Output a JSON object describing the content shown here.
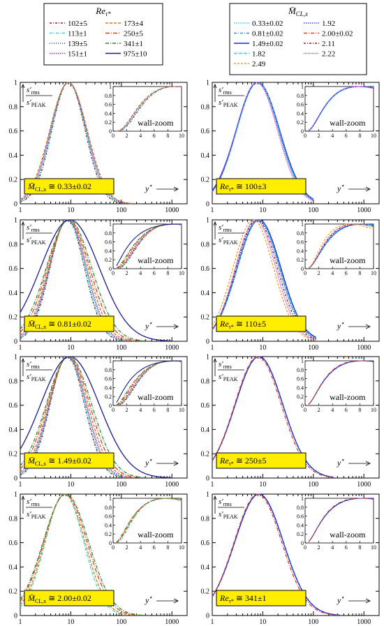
{
  "legend_left": {
    "title": "Re",
    "title_sub": "τ*",
    "entries": [
      {
        "label": "102±5",
        "color": "#8b1a1a",
        "dash": "3,2,1,2"
      },
      {
        "label": "173±4",
        "color": "#c87d1a",
        "dash": "4,2"
      },
      {
        "label": "113±1",
        "color": "#2fd4d4",
        "dash": "4,2,1,2"
      },
      {
        "label": "250±5",
        "color": "#e33b1f",
        "dash": "6,2,1,2"
      },
      {
        "label": "139±5",
        "color": "#1f4fa0",
        "dash": "1,2"
      },
      {
        "label": "341±1",
        "color": "#2a8a2a",
        "dash": "5,2,1,2"
      },
      {
        "label": "151±1",
        "color": "#a02fc8",
        "dash": "1.5,1.5"
      },
      {
        "label": "975±10",
        "color": "#1a1a8a",
        "dash": ""
      }
    ]
  },
  "legend_right": {
    "title": "M̄",
    "title_sub": "CL,x",
    "entries": [
      {
        "label": "0.33±0.02",
        "color": "#2fd4d4",
        "dash": "1.5,1.5"
      },
      {
        "label": "1.92",
        "color": "#3344dd",
        "dash": "1.5,1.5"
      },
      {
        "label": "0.81±0.02",
        "color": "#3a8fd0",
        "dash": "4,2,1,2"
      },
      {
        "label": "2.00±0.02",
        "color": "#e33b1f",
        "dash": "5,2,1,2"
      },
      {
        "label": "1.49±0.02",
        "color": "#1a2ad8",
        "dash": ""
      },
      {
        "label": "2.11",
        "color": "#8b1a1a",
        "dash": "3,2,1,2"
      },
      {
        "label": "1.82",
        "color": "#2fd4d4",
        "dash": "5,2"
      },
      {
        "label": "2.22",
        "color": "#c02fd0",
        "dash": "1,1"
      },
      {
        "label": "2.49",
        "color": "#f0a020",
        "dash": "3,2"
      }
    ]
  },
  "axis_labels": {
    "ylabel_num": "s′",
    "ylabel_num_sub": "rms",
    "ylabel_den": "s′",
    "ylabel_den_sub": "PEAK",
    "xlabel": "y",
    "xlabel_sup": "⋆",
    "inset_label": "wall-zoom"
  },
  "chart_data": [
    {
      "type": "line",
      "panel": "left-1",
      "badge_var": "M̄",
      "badge_sub": "CL,x",
      "badge_value": "≅ 0.33±0.02",
      "xscale": "log",
      "xlim": [
        1,
        2000
      ],
      "ylim": [
        0,
        1
      ],
      "x_ticks": [
        "1",
        "10",
        "100",
        "1000"
      ],
      "y_ticks": [
        "0",
        "0.2",
        "0.4",
        "0.6",
        "0.8",
        "1"
      ],
      "inset": {
        "xlim": [
          0,
          10
        ],
        "ylim": [
          0,
          1
        ],
        "x_ticks": [
          "0",
          "2",
          "4",
          "6",
          "8",
          "10"
        ],
        "y_ticks": [
          "0",
          "0.2",
          "0.4",
          "0.6",
          "0.8",
          "1"
        ]
      },
      "series": [
        {
          "legend": "left",
          "idx": 0,
          "peak": 9,
          "width": 0.33,
          "xmax": 102
        },
        {
          "legend": "left",
          "idx": 2,
          "peak": 9,
          "width": 0.34,
          "xmax": 113
        },
        {
          "legend": "left",
          "idx": 4,
          "peak": 9,
          "width": 0.35,
          "xmax": 139
        },
        {
          "legend": "left",
          "idx": 6,
          "peak": 9,
          "width": 0.36,
          "xmax": 151
        },
        {
          "legend": "left",
          "idx": 1,
          "peak": 9,
          "width": 0.37,
          "xmax": 173
        }
      ]
    },
    {
      "type": "line",
      "panel": "right-1",
      "badge_var": "Re",
      "badge_sub": "τ*",
      "badge_value": "≅ 100±3",
      "xscale": "log",
      "xlim": [
        1,
        2000
      ],
      "ylim": [
        0,
        1
      ],
      "x_ticks": [
        "1",
        "10",
        "100",
        "1000"
      ],
      "y_ticks": [
        "0",
        "0.2",
        "0.4",
        "0.6",
        "0.8",
        "1"
      ],
      "inset": {
        "xlim": [
          0,
          10
        ],
        "ylim": [
          0,
          1
        ],
        "x_ticks": [
          "0",
          "2",
          "4",
          "6",
          "8",
          "10"
        ],
        "y_ticks": [
          "0",
          "0.2",
          "0.4",
          "0.6",
          "0.8",
          "1"
        ]
      },
      "series": [
        {
          "legend": "right",
          "idx": 0,
          "peak": 8,
          "width": 0.42,
          "xmax": 100
        },
        {
          "legend": "right",
          "idx": 2,
          "peak": 8,
          "width": 0.43,
          "xmax": 100
        },
        {
          "legend": "right",
          "idx": 4,
          "peak": 8,
          "width": 0.43,
          "xmax": 100
        },
        {
          "legend": "right",
          "idx": 6,
          "peak": 8,
          "width": 0.42,
          "xmax": 100
        },
        {
          "legend": "right",
          "idx": 1,
          "peak": 7.8,
          "width": 0.42,
          "xmax": 100
        },
        {
          "legend": "right",
          "idx": 7,
          "peak": 7.6,
          "width": 0.41,
          "xmax": 100
        }
      ]
    },
    {
      "type": "line",
      "panel": "left-2",
      "badge_var": "M̄",
      "badge_sub": "CL,x",
      "badge_value": "≅ 0.81±0.02",
      "xscale": "log",
      "xlim": [
        1,
        2000
      ],
      "ylim": [
        0,
        1
      ],
      "x_ticks": [
        "1",
        "10",
        "100",
        "1000"
      ],
      "y_ticks": [
        "0",
        "0.2",
        "0.4",
        "0.6",
        "0.8",
        "1"
      ],
      "inset": {
        "xlim": [
          0,
          10
        ],
        "ylim": [
          0,
          1
        ],
        "x_ticks": [
          "0",
          "2",
          "4",
          "6",
          "8",
          "10"
        ],
        "y_ticks": [
          "0",
          "0.2",
          "0.4",
          "0.6",
          "0.8",
          "1"
        ]
      },
      "series": [
        {
          "legend": "left",
          "idx": 0,
          "peak": 8.5,
          "width": 0.34,
          "xmax": 102
        },
        {
          "legend": "left",
          "idx": 2,
          "peak": 8.5,
          "width": 0.35,
          "xmax": 113
        },
        {
          "legend": "left",
          "idx": 4,
          "peak": 8.7,
          "width": 0.36,
          "xmax": 139
        },
        {
          "legend": "left",
          "idx": 6,
          "peak": 8.7,
          "width": 0.37,
          "xmax": 151
        },
        {
          "legend": "left",
          "idx": 1,
          "peak": 8.9,
          "width": 0.39,
          "xmax": 173
        },
        {
          "legend": "left",
          "idx": 3,
          "peak": 9,
          "width": 0.42,
          "xmax": 250
        },
        {
          "legend": "left",
          "idx": 5,
          "peak": 9.2,
          "width": 0.45,
          "xmax": 341
        },
        {
          "legend": "left",
          "idx": 7,
          "peak": 9.6,
          "width": 0.58,
          "xmax": 975
        }
      ]
    },
    {
      "type": "line",
      "panel": "right-2",
      "badge_var": "Re",
      "badge_sub": "τ*",
      "badge_value": "≅ 110±5",
      "xscale": "log",
      "xlim": [
        1,
        2000
      ],
      "ylim": [
        0,
        1
      ],
      "x_ticks": [
        "1",
        "10",
        "100",
        "1000"
      ],
      "y_ticks": [
        "0",
        "0.2",
        "0.4",
        "0.6",
        "0.8",
        "1"
      ],
      "inset": {
        "xlim": [
          0,
          10
        ],
        "ylim": [
          0,
          1
        ],
        "x_ticks": [
          "0",
          "2",
          "4",
          "6",
          "8",
          "10"
        ],
        "y_ticks": [
          "0",
          "0.2",
          "0.4",
          "0.6",
          "0.8",
          "1"
        ]
      },
      "series": [
        {
          "legend": "right",
          "idx": 0,
          "peak": 8.5,
          "width": 0.43,
          "xmax": 113
        },
        {
          "legend": "right",
          "idx": 2,
          "peak": 8.5,
          "width": 0.43,
          "xmax": 113
        },
        {
          "legend": "right",
          "idx": 4,
          "peak": 8.4,
          "width": 0.43,
          "xmax": 113
        },
        {
          "legend": "right",
          "idx": 6,
          "peak": 8.2,
          "width": 0.42,
          "xmax": 113
        },
        {
          "legend": "right",
          "idx": 1,
          "peak": 8,
          "width": 0.42,
          "xmax": 113
        },
        {
          "legend": "right",
          "idx": 5,
          "peak": 7.6,
          "width": 0.41,
          "xmax": 113
        },
        {
          "legend": "right",
          "idx": 7,
          "peak": 7.2,
          "width": 0.4,
          "xmax": 113
        },
        {
          "legend": "right",
          "idx": 8,
          "peak": 6.5,
          "width": 0.4,
          "xmax": 113
        }
      ]
    },
    {
      "type": "line",
      "panel": "left-3",
      "badge_var": "M̄",
      "badge_sub": "CL,x",
      "badge_value": "≅ 1.49±0.02",
      "xscale": "log",
      "xlim": [
        1,
        2000
      ],
      "ylim": [
        0,
        1
      ],
      "x_ticks": [
        "1",
        "10",
        "100",
        "1000"
      ],
      "y_ticks": [
        "0",
        "0.2",
        "0.4",
        "0.6",
        "0.8",
        "1"
      ],
      "inset": {
        "xlim": [
          0,
          10
        ],
        "ylim": [
          0,
          1
        ],
        "x_ticks": [
          "0",
          "2",
          "4",
          "6",
          "8",
          "10"
        ],
        "y_ticks": [
          "0",
          "0.2",
          "0.4",
          "0.6",
          "0.8",
          "1"
        ]
      },
      "series": [
        {
          "legend": "left",
          "idx": 0,
          "peak": 8.5,
          "width": 0.34,
          "xmax": 102
        },
        {
          "legend": "left",
          "idx": 2,
          "peak": 8.5,
          "width": 0.35,
          "xmax": 113
        },
        {
          "legend": "left",
          "idx": 4,
          "peak": 8.7,
          "width": 0.36,
          "xmax": 139
        },
        {
          "legend": "left",
          "idx": 6,
          "peak": 8.7,
          "width": 0.37,
          "xmax": 151
        },
        {
          "legend": "left",
          "idx": 1,
          "peak": 8.9,
          "width": 0.39,
          "xmax": 173
        },
        {
          "legend": "left",
          "idx": 3,
          "peak": 9,
          "width": 0.42,
          "xmax": 250
        },
        {
          "legend": "left",
          "idx": 5,
          "peak": 9.2,
          "width": 0.45,
          "xmax": 341
        },
        {
          "legend": "left",
          "idx": 7,
          "peak": 9.6,
          "width": 0.58,
          "xmax": 975
        }
      ]
    },
    {
      "type": "line",
      "panel": "right-3",
      "badge_var": "Re",
      "badge_sub": "τ*",
      "badge_value": "≅ 250±5",
      "xscale": "log",
      "xlim": [
        1,
        2000
      ],
      "ylim": [
        0,
        1
      ],
      "x_ticks": [
        "1",
        "10",
        "100",
        "1000"
      ],
      "y_ticks": [
        "0",
        "0.2",
        "0.4",
        "0.6",
        "0.8",
        "1"
      ],
      "inset": {
        "xlim": [
          0,
          10
        ],
        "ylim": [
          0,
          1
        ],
        "x_ticks": [
          "0",
          "2",
          "4",
          "6",
          "8",
          "10"
        ],
        "y_ticks": [
          "0",
          "0.2",
          "0.4",
          "0.6",
          "0.8",
          "1"
        ]
      },
      "series": [
        {
          "legend": "right",
          "idx": 2,
          "peak": 8.5,
          "width": 0.47,
          "xmax": 250
        },
        {
          "legend": "right",
          "idx": 4,
          "peak": 8.4,
          "width": 0.47,
          "xmax": 250
        },
        {
          "legend": "right",
          "idx": 3,
          "peak": 8,
          "width": 0.46,
          "xmax": 250
        }
      ]
    },
    {
      "type": "line",
      "panel": "left-4",
      "badge_var": "M̄",
      "badge_sub": "CL,x",
      "badge_value": "≅ 2.00±0.02",
      "xscale": "log",
      "xlim": [
        1,
        2000
      ],
      "ylim": [
        0,
        1
      ],
      "x_ticks": [
        "1",
        "10",
        "100",
        "1000"
      ],
      "y_ticks": [
        "0",
        "0.2",
        "0.4",
        "0.6",
        "0.8",
        "1"
      ],
      "inset": {
        "xlim": [
          0,
          10
        ],
        "ylim": [
          0,
          1
        ],
        "x_ticks": [
          "0",
          "2",
          "4",
          "6",
          "8",
          "10"
        ],
        "y_ticks": [
          "0",
          "0.2",
          "0.4",
          "0.6",
          "0.8",
          "1"
        ]
      },
      "series": [
        {
          "legend": "left",
          "idx": 2,
          "peak": 7.5,
          "width": 0.38,
          "xmax": 113
        },
        {
          "legend": "left",
          "idx": 1,
          "peak": 7.6,
          "width": 0.4,
          "xmax": 173
        },
        {
          "legend": "left",
          "idx": 3,
          "peak": 7.8,
          "width": 0.43,
          "xmax": 250
        },
        {
          "legend": "left",
          "idx": 5,
          "peak": 8,
          "width": 0.45,
          "xmax": 341
        }
      ]
    },
    {
      "type": "line",
      "panel": "right-4",
      "badge_var": "Re",
      "badge_sub": "τ*",
      "badge_value": "≅ 341±1",
      "xscale": "log",
      "xlim": [
        1,
        2000
      ],
      "ylim": [
        0,
        1
      ],
      "x_ticks": [
        "1",
        "10",
        "100",
        "1000"
      ],
      "y_ticks": [
        "0",
        "0.2",
        "0.4",
        "0.6",
        "0.8",
        "1"
      ],
      "inset": {
        "xlim": [
          0,
          10
        ],
        "ylim": [
          0,
          1
        ],
        "x_ticks": [
          "0",
          "2",
          "4",
          "6",
          "8",
          "10"
        ],
        "y_ticks": [
          "0",
          "0.2",
          "0.4",
          "0.6",
          "0.8",
          "1"
        ]
      },
      "series": [
        {
          "legend": "right",
          "idx": 2,
          "peak": 8.5,
          "width": 0.48,
          "xmax": 341
        },
        {
          "legend": "right",
          "idx": 4,
          "peak": 8.4,
          "width": 0.48,
          "xmax": 341
        },
        {
          "legend": "right",
          "idx": 3,
          "peak": 8,
          "width": 0.47,
          "xmax": 341
        }
      ]
    }
  ]
}
